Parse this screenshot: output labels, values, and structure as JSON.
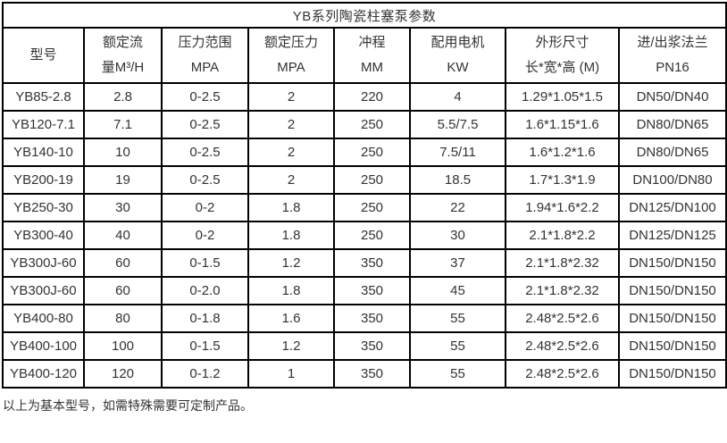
{
  "table": {
    "title": "YB系列陶瓷柱塞泵参数",
    "columns": [
      {
        "key": "model",
        "line1": "型号",
        "line2": ""
      },
      {
        "key": "rated_flow",
        "line1": "额定流",
        "line2": "量M³/H"
      },
      {
        "key": "pressure_range",
        "line1": "压力范围",
        "line2": "MPA"
      },
      {
        "key": "rated_pressure",
        "line1": "额定压力",
        "line2": "MPA"
      },
      {
        "key": "stroke",
        "line1": "冲程",
        "line2": "MM"
      },
      {
        "key": "motor_power",
        "line1": "配用电机",
        "line2": "KW"
      },
      {
        "key": "dimensions",
        "line1": "外形尺寸",
        "line2": "长*宽*高 (M)"
      },
      {
        "key": "flange",
        "line1": "进/出浆法兰",
        "line2": "PN16"
      }
    ],
    "rows": [
      [
        "YB85-2.8",
        "2.8",
        "0-2.5",
        "2",
        "220",
        "4",
        "1.29*1.05*1.5",
        "DN50/DN40"
      ],
      [
        "YB120-7.1",
        "7.1",
        "0-2.5",
        "2",
        "250",
        "5.5/7.5",
        "1.6*1.15*1.6",
        "DN80/DN65"
      ],
      [
        "YB140-10",
        "10",
        "0-2.5",
        "2",
        "250",
        "7.5/11",
        "1.6*1.2*1.6",
        "DN80/DN65"
      ],
      [
        "YB200-19",
        "19",
        "0-2.5",
        "2",
        "250",
        "18.5",
        "1.7*1.3*1.9",
        "DN100/DN80"
      ],
      [
        "YB250-30",
        "30",
        "0-2",
        "1.8",
        "250",
        "22",
        "1.94*1.6*2.2",
        "DN125/DN100"
      ],
      [
        "YB300-40",
        "40",
        "0-2",
        "1.8",
        "250",
        "30",
        "2.1*1.8*2.2",
        "DN125/DN125"
      ],
      [
        "YB300J-60",
        "60",
        "0-1.5",
        "1.2",
        "350",
        "37",
        "2.1*1.8*2.32",
        "DN150/DN150"
      ],
      [
        "YB300J-60",
        "60",
        "0-2.0",
        "1.8",
        "350",
        "45",
        "2.1*1.8*2.32",
        "DN150/DN150"
      ],
      [
        "YB400-80",
        "80",
        "0-1.8",
        "1.6",
        "350",
        "55",
        "2.48*2.5*2.6",
        "DN150/DN150"
      ],
      [
        "YB400-100",
        "100",
        "0-1.5",
        "1.2",
        "350",
        "55",
        "2.48*2.5*2.6",
        "DN150/DN150"
      ],
      [
        "YB400-120",
        "120",
        "0-1.2",
        "1",
        "350",
        "55",
        "2.48*2.5*2.6",
        "DN150/DN150"
      ]
    ]
  },
  "footer": {
    "note": "以上为基本型号，如需特殊需要可定制产品。"
  },
  "colors": {
    "border": "#000000",
    "text": "#333333",
    "background": "#ffffff"
  }
}
